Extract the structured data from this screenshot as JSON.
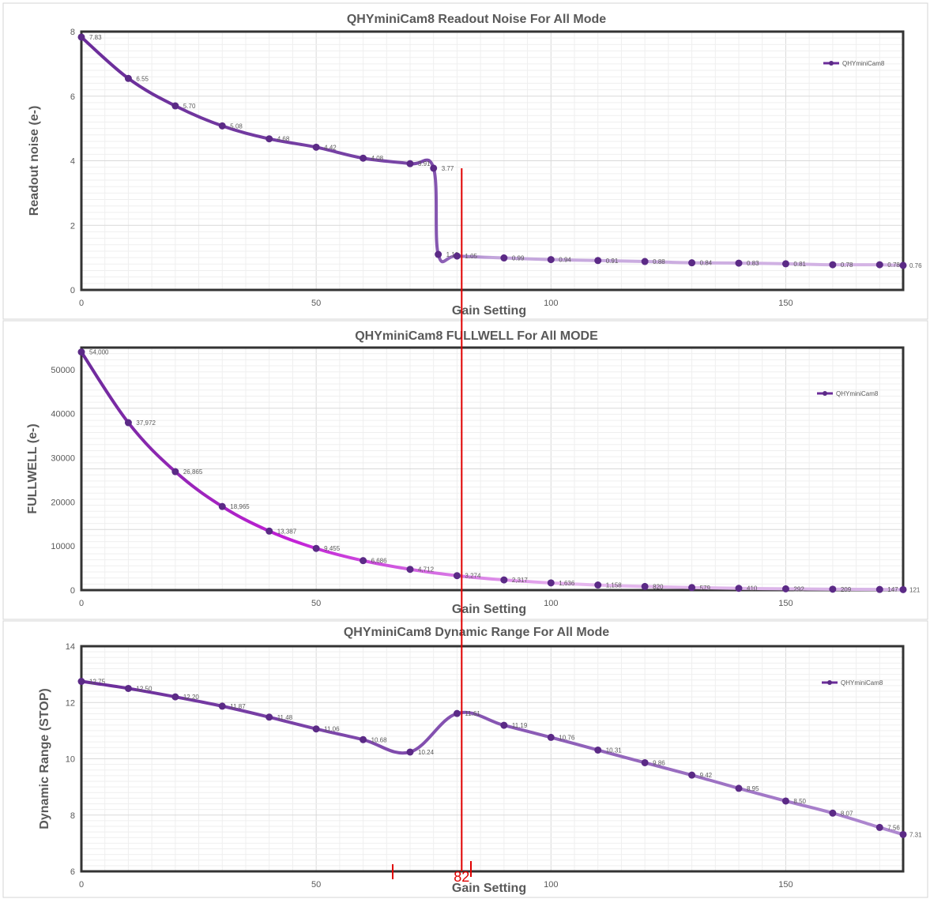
{
  "chart_data": [
    {
      "type": "line",
      "title": "QHYminiCam8  Readout Noise For All Mode",
      "xlabel": "Gain Setting",
      "ylabel": "Readout noise (e-)",
      "xlim": [
        0,
        175
      ],
      "ylim": [
        0,
        8
      ],
      "xticks": [
        "0",
        "50",
        "100",
        "150"
      ],
      "yticks": [
        "0",
        "2",
        "4",
        "6",
        "8"
      ],
      "legend": "top-right",
      "grid": true,
      "series": [
        {
          "name": "QHYminiCam8",
          "x": [
            0,
            10,
            20,
            30,
            40,
            50,
            60,
            70,
            75,
            76,
            80,
            90,
            100,
            110,
            120,
            130,
            140,
            150,
            160,
            170,
            175
          ],
          "y": [
            7.83,
            6.55,
            5.7,
            5.08,
            4.68,
            4.42,
            4.08,
            3.91,
            3.77,
            1.1,
            1.05,
            0.99,
            0.94,
            0.91,
            0.88,
            0.84,
            0.83,
            0.81,
            0.78,
            0.78,
            0.76
          ],
          "labels": [
            "7.83",
            "6.55",
            "5.70",
            "5.08",
            "4.68",
            "4.42",
            "4.08",
            "3.91",
            "3.77",
            "1.10",
            "1.05",
            "0.99",
            "0.94",
            "0.91",
            "0.88",
            "0.84",
            "0.83",
            "0.81",
            "0.78",
            "0.78",
            "0.76"
          ]
        }
      ]
    },
    {
      "type": "line",
      "title": "QHYminiCam8  FULLWELL For All MODE",
      "xlabel": "Gain Setting",
      "ylabel": "FULLWELL (e-)",
      "xlim": [
        0,
        175
      ],
      "ylim": [
        0,
        55000
      ],
      "xticks": [
        "0",
        "50",
        "100",
        "150"
      ],
      "yticks": [
        "0",
        "10000",
        "20000",
        "30000",
        "40000",
        "50000"
      ],
      "legend": "top-right",
      "grid": true,
      "series": [
        {
          "name": "QHYminiCam8",
          "x": [
            0,
            10,
            20,
            30,
            40,
            50,
            60,
            70,
            80,
            90,
            100,
            110,
            120,
            130,
            140,
            150,
            160,
            170,
            175
          ],
          "y": [
            54000,
            37972,
            26865,
            18965,
            13387,
            9455,
            6686,
            4712,
            3274,
            2317,
            1636,
            1158,
            820,
            579,
            410,
            292,
            209,
            147,
            121
          ],
          "labels": [
            "54,000",
            "37,972",
            "26,865",
            "18,965",
            "13,387",
            "9,455",
            "6,686",
            "4,712",
            "3,274",
            "2,317",
            "1,636",
            "1,158",
            "820",
            "579",
            "410",
            "292",
            "209",
            "147",
            "121"
          ]
        }
      ]
    },
    {
      "type": "line",
      "title": "QHYminiCam8 Dynamic Range For All Mode",
      "xlabel": "Gain Setting",
      "ylabel": "Dynamic Range (STOP)",
      "xlim": [
        0,
        175
      ],
      "ylim": [
        6,
        14
      ],
      "xticks": [
        "0",
        "50",
        "100",
        "150"
      ],
      "yticks": [
        "6",
        "8",
        "10",
        "12",
        "14"
      ],
      "legend": "top-right",
      "grid": true,
      "series": [
        {
          "name": "QHYminiCam8",
          "x": [
            0,
            10,
            20,
            30,
            40,
            50,
            60,
            70,
            80,
            90,
            100,
            110,
            120,
            130,
            140,
            150,
            160,
            170,
            175
          ],
          "y": [
            12.75,
            12.5,
            12.2,
            11.87,
            11.48,
            11.06,
            10.68,
            10.24,
            11.61,
            11.19,
            10.76,
            10.31,
            9.86,
            9.42,
            8.95,
            8.5,
            8.07,
            7.56,
            7.31
          ],
          "labels": [
            "12.75",
            "12.50",
            "12.20",
            "11.87",
            "11.48",
            "11.06",
            "10.68",
            "10.24",
            "11.61",
            "11.19",
            "10.76",
            "10.31",
            "9.86",
            "9.42",
            "8.95",
            "8.50",
            "8.07",
            "7.56",
            "7.31"
          ]
        }
      ]
    }
  ],
  "annotation": {
    "marker_value": 82,
    "marker_label": "82",
    "color": "#e00000"
  },
  "colors": {
    "line_dark": "#6b2c9a",
    "line_magenta": "#c21ed6",
    "line_light": "#d6b6e6",
    "point": "#5b2a86"
  }
}
